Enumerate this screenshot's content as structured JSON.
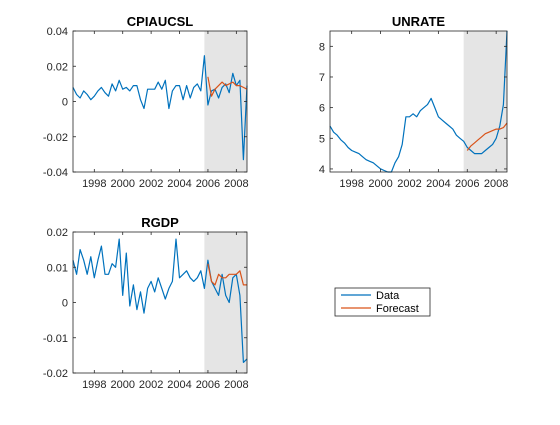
{
  "colors": {
    "data": "#0072BD",
    "forecast": "#D95319",
    "shade": "#E5E5E5",
    "axis": "#262626"
  },
  "legend": {
    "placement": "figure lower-right",
    "items": [
      "Data",
      "Forecast"
    ]
  },
  "chart_data": [
    {
      "type": "line",
      "title": "CPIAUCSL",
      "xlabel": "",
      "ylabel": "",
      "xlim": [
        1996.5,
        2008.75
      ],
      "ylim": [
        -0.04,
        0.04
      ],
      "x_ticks": [
        1998,
        2000,
        2002,
        2004,
        2006,
        2008
      ],
      "y_ticks": [
        -0.04,
        -0.02,
        0,
        0.02,
        0.04
      ],
      "y_tick_labels": [
        "-0.04",
        "-0.02",
        "0",
        "0.02",
        "0.04"
      ],
      "shaded_region": [
        2005.75,
        2008.75
      ],
      "grid": false,
      "series": [
        {
          "name": "Data",
          "x": [
            1996.5,
            1996.75,
            1997,
            1997.25,
            1997.5,
            1997.75,
            1998,
            1998.25,
            1998.5,
            1998.75,
            1999,
            1999.25,
            1999.5,
            1999.75,
            2000,
            2000.25,
            2000.5,
            2000.75,
            2001,
            2001.25,
            2001.5,
            2001.75,
            2002,
            2002.25,
            2002.5,
            2002.75,
            2003,
            2003.25,
            2003.5,
            2003.75,
            2004,
            2004.25,
            2004.5,
            2004.75,
            2005,
            2005.25,
            2005.5,
            2005.75,
            2006,
            2006.25,
            2006.5,
            2006.75,
            2007,
            2007.25,
            2007.5,
            2007.75,
            2008,
            2008.25,
            2008.5,
            2008.75
          ],
          "y": [
            0.008,
            0.004,
            0.002,
            0.006,
            0.004,
            0.001,
            0.003,
            0.006,
            0.008,
            0.005,
            0.003,
            0.01,
            0.006,
            0.012,
            0.007,
            0.008,
            0.006,
            0.009,
            0.009,
            0.001,
            -0.004,
            0.007,
            0.007,
            0.007,
            0.011,
            0.007,
            0.012,
            -0.004,
            0.006,
            0.009,
            0.009,
            0.001,
            0.009,
            0.002,
            0.008,
            0.01,
            0.006,
            0.026,
            -0.002,
            0.006,
            0.007,
            0.002,
            0.008,
            0.01,
            0.005,
            0.016,
            0.009,
            0.012,
            -0.033,
            0.009
          ]
        },
        {
          "name": "Forecast",
          "x": [
            2006,
            2006.25,
            2006.5,
            2006.75,
            2007,
            2007.25,
            2007.5,
            2007.75,
            2008,
            2008.25,
            2008.5,
            2008.75
          ],
          "y": [
            0.014,
            0.003,
            0.007,
            0.009,
            0.011,
            0.009,
            0.01,
            0.011,
            0.009,
            0.009,
            0.008,
            0.007
          ]
        }
      ]
    },
    {
      "type": "line",
      "title": "UNRATE",
      "xlabel": "",
      "ylabel": "",
      "xlim": [
        1996.5,
        2008.75
      ],
      "ylim": [
        3.9,
        8.5
      ],
      "x_ticks": [
        1998,
        2000,
        2002,
        2004,
        2006,
        2008
      ],
      "y_ticks": [
        4,
        5,
        6,
        7,
        8
      ],
      "y_tick_labels": [
        "4",
        "5",
        "6",
        "7",
        "8"
      ],
      "shaded_region": [
        2005.75,
        2008.75
      ],
      "grid": false,
      "series": [
        {
          "name": "Data",
          "x": [
            1996.5,
            1996.75,
            1997,
            1997.25,
            1997.5,
            1997.75,
            1998,
            1998.25,
            1998.5,
            1998.75,
            1999,
            1999.25,
            1999.5,
            1999.75,
            2000,
            2000.25,
            2000.5,
            2000.75,
            2001,
            2001.25,
            2001.5,
            2001.75,
            2002,
            2002.25,
            2002.5,
            2002.75,
            2003,
            2003.25,
            2003.5,
            2003.75,
            2004,
            2004.25,
            2004.5,
            2004.75,
            2005,
            2005.25,
            2005.5,
            2005.75,
            2006,
            2006.25,
            2006.5,
            2006.75,
            2007,
            2007.25,
            2007.5,
            2007.75,
            2008,
            2008.25,
            2008.5,
            2008.75
          ],
          "y": [
            5.4,
            5.2,
            5.1,
            4.95,
            4.85,
            4.7,
            4.6,
            4.55,
            4.5,
            4.4,
            4.3,
            4.25,
            4.2,
            4.1,
            4.0,
            3.95,
            3.9,
            3.9,
            4.2,
            4.4,
            4.8,
            5.7,
            5.7,
            5.8,
            5.7,
            5.9,
            6.0,
            6.1,
            6.3,
            6.0,
            5.7,
            5.6,
            5.5,
            5.4,
            5.3,
            5.1,
            5.0,
            4.9,
            4.7,
            4.6,
            4.5,
            4.5,
            4.5,
            4.6,
            4.7,
            4.8,
            5.0,
            5.4,
            6.1,
            8.5
          ]
        },
        {
          "name": "Forecast",
          "x": [
            2006,
            2006.25,
            2006.5,
            2006.75,
            2007,
            2007.25,
            2007.5,
            2007.75,
            2008,
            2008.25,
            2008.5,
            2008.75
          ],
          "y": [
            4.6,
            4.75,
            4.85,
            4.95,
            5.05,
            5.15,
            5.2,
            5.25,
            5.3,
            5.3,
            5.35,
            5.5
          ]
        }
      ]
    },
    {
      "type": "line",
      "title": "RGDP",
      "xlabel": "",
      "ylabel": "",
      "xlim": [
        1996.5,
        2008.75
      ],
      "ylim": [
        -0.02,
        0.02
      ],
      "x_ticks": [
        1998,
        2000,
        2002,
        2004,
        2006,
        2008
      ],
      "y_ticks": [
        -0.02,
        -0.01,
        0,
        0.01,
        0.02
      ],
      "y_tick_labels": [
        "-0.02",
        "-0.01",
        "0",
        "0.01",
        "0.02"
      ],
      "shaded_region": [
        2005.75,
        2008.75
      ],
      "grid": false,
      "series": [
        {
          "name": "Data",
          "x": [
            1996.5,
            1996.75,
            1997,
            1997.25,
            1997.5,
            1997.75,
            1998,
            1998.25,
            1998.5,
            1998.75,
            1999,
            1999.25,
            1999.5,
            1999.75,
            2000,
            2000.25,
            2000.5,
            2000.75,
            2001,
            2001.25,
            2001.5,
            2001.75,
            2002,
            2002.25,
            2002.5,
            2002.75,
            2003,
            2003.25,
            2003.5,
            2003.75,
            2004,
            2004.25,
            2004.5,
            2004.75,
            2005,
            2005.25,
            2005.5,
            2005.75,
            2006,
            2006.25,
            2006.5,
            2006.75,
            2007,
            2007.25,
            2007.5,
            2007.75,
            2008,
            2008.25,
            2008.5,
            2008.75
          ],
          "y": [
            0.012,
            0.008,
            0.015,
            0.012,
            0.008,
            0.013,
            0.007,
            0.012,
            0.016,
            0.008,
            0.008,
            0.011,
            0.01,
            0.018,
            0.002,
            0.014,
            -0.001,
            0.005,
            -0.002,
            0.003,
            -0.003,
            0.004,
            0.006,
            0.003,
            0.007,
            0.004,
            0.001,
            0.004,
            0.006,
            0.018,
            0.007,
            0.008,
            0.009,
            0.007,
            0.006,
            0.007,
            0.009,
            0.004,
            0.012,
            0.006,
            0.004,
            0.002,
            0.008,
            0.002,
            0.0,
            0.007,
            0.008,
            0.002,
            -0.017,
            -0.016
          ]
        },
        {
          "name": "Forecast",
          "x": [
            2006,
            2006.25,
            2006.5,
            2006.75,
            2007,
            2007.25,
            2007.5,
            2007.75,
            2008,
            2008.25,
            2008.5,
            2008.75
          ],
          "y": [
            0.011,
            0.006,
            0.005,
            0.008,
            0.007,
            0.007,
            0.008,
            0.008,
            0.008,
            0.009,
            0.005,
            0.005
          ]
        }
      ]
    }
  ]
}
